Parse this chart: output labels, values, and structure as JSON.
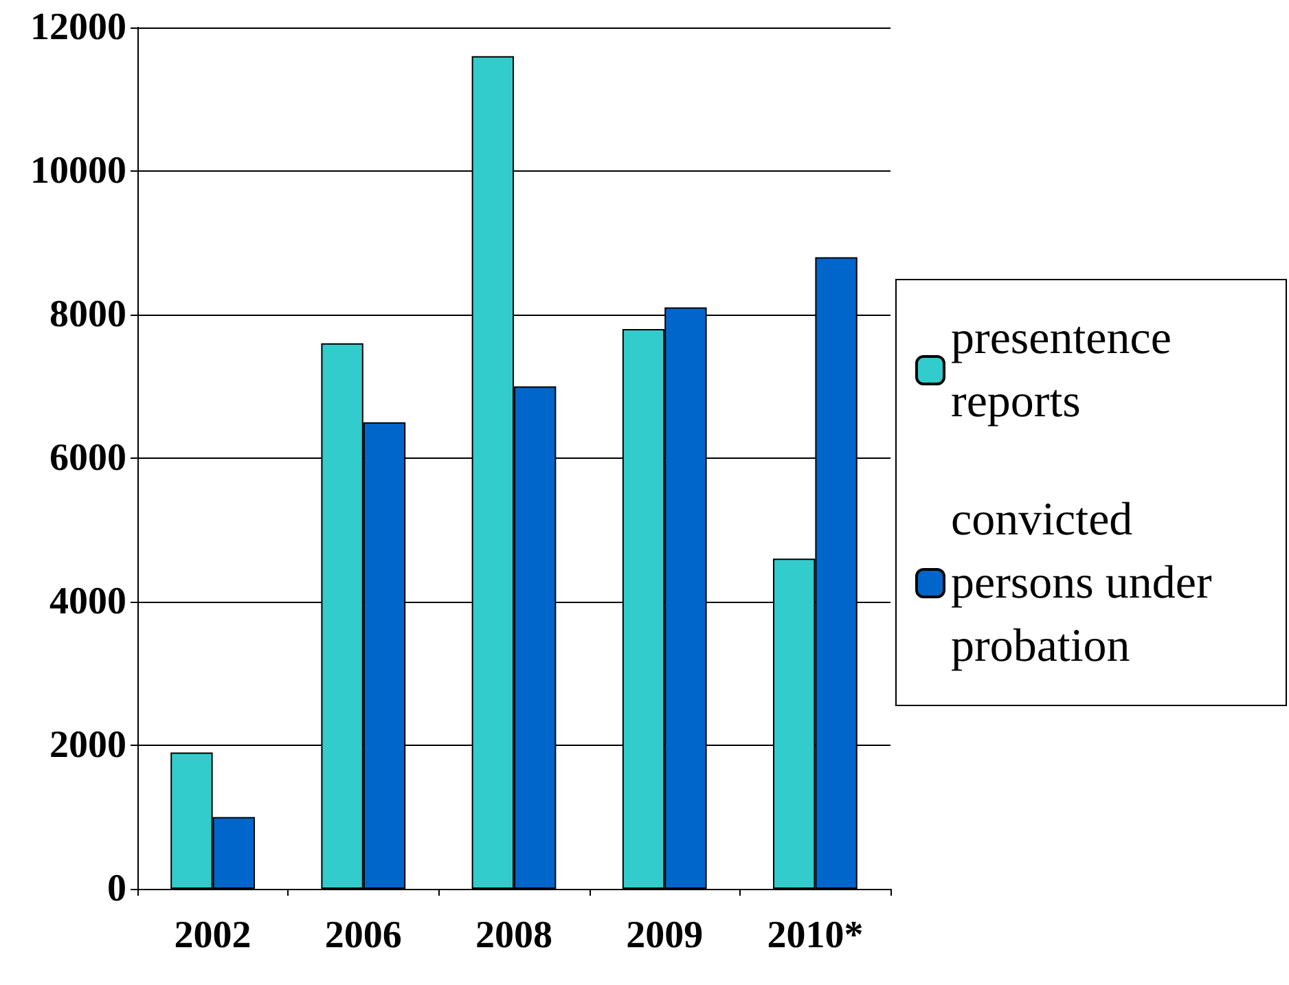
{
  "chart_data": {
    "type": "bar",
    "categories": [
      "2002",
      "2006",
      "2008",
      "2009",
      "2010*"
    ],
    "series": [
      {
        "name": "presentence reports",
        "color": "#33cccc",
        "values": [
          1900,
          7600,
          11600,
          7800,
          4600
        ]
      },
      {
        "name": "convicted persons under probation",
        "color": "#0066cc",
        "values": [
          1000,
          6500,
          7000,
          8100,
          8800
        ]
      }
    ],
    "ylim": [
      0,
      12000
    ],
    "yticks": [
      0,
      2000,
      4000,
      6000,
      8000,
      10000,
      12000
    ],
    "grid": "y",
    "legend": "right"
  }
}
